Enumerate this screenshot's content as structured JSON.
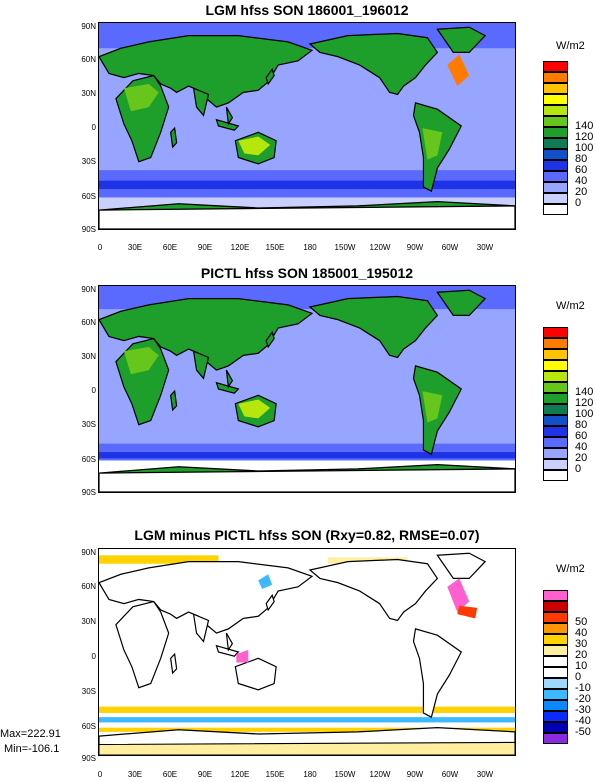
{
  "panels": [
    {
      "title": "LGM hfss SON 186001_196012",
      "unit": "W/m2",
      "cbar": {
        "labels": [
          "140",
          "120",
          "100",
          "80",
          "60",
          "40",
          "20",
          "0"
        ],
        "colors": [
          "#ff0000",
          "#ff7b00",
          "#ffc400",
          "#ffff00",
          "#b7e60c",
          "#67c61b",
          "#1e9e2a",
          "#107a55",
          "#1150c8",
          "#1e33e6",
          "#5a6aff",
          "#97a5ff",
          "#c9d0ff",
          "#ffffff"
        ]
      }
    },
    {
      "title": "PICTL hfss SON 185001_195012",
      "unit": "W/m2",
      "cbar": {
        "labels": [
          "140",
          "120",
          "100",
          "80",
          "60",
          "40",
          "20",
          "0"
        ],
        "colors": [
          "#ff0000",
          "#ff7b00",
          "#ffc400",
          "#ffff00",
          "#b7e60c",
          "#67c61b",
          "#1e9e2a",
          "#107a55",
          "#1150c8",
          "#1e33e6",
          "#5a6aff",
          "#97a5ff",
          "#c9d0ff",
          "#ffffff"
        ]
      }
    },
    {
      "title": "LGM minus PICTL hfss SON (Rxy=0.82, RMSE=0.07)",
      "unit": "W/m2",
      "cbar": {
        "labels": [
          "50",
          "40",
          "30",
          "20",
          "10",
          "0",
          "-10",
          "-20",
          "-30",
          "-40",
          "-50"
        ],
        "colors": [
          "#ff5fcf",
          "#cc0000",
          "#ff3a00",
          "#ff9500",
          "#ffd200",
          "#ffef9f",
          "#ffffff",
          "#ffffff",
          "#a0d7ff",
          "#3dbaff",
          "#0a89ff",
          "#0b2aff",
          "#0000b4",
          "#8a2be2"
        ]
      }
    }
  ],
  "lat_labels": [
    "90N",
    "60N",
    "30N",
    "0",
    "30S",
    "60S",
    "90S"
  ],
  "lon_labels": [
    "0",
    "30E",
    "60E",
    "90E",
    "120E",
    "150E",
    "180",
    "150W",
    "120W",
    "90W",
    "60W",
    "30W"
  ],
  "stats": {
    "max": "Max=222.91",
    "min": "Min=-106.1"
  }
}
